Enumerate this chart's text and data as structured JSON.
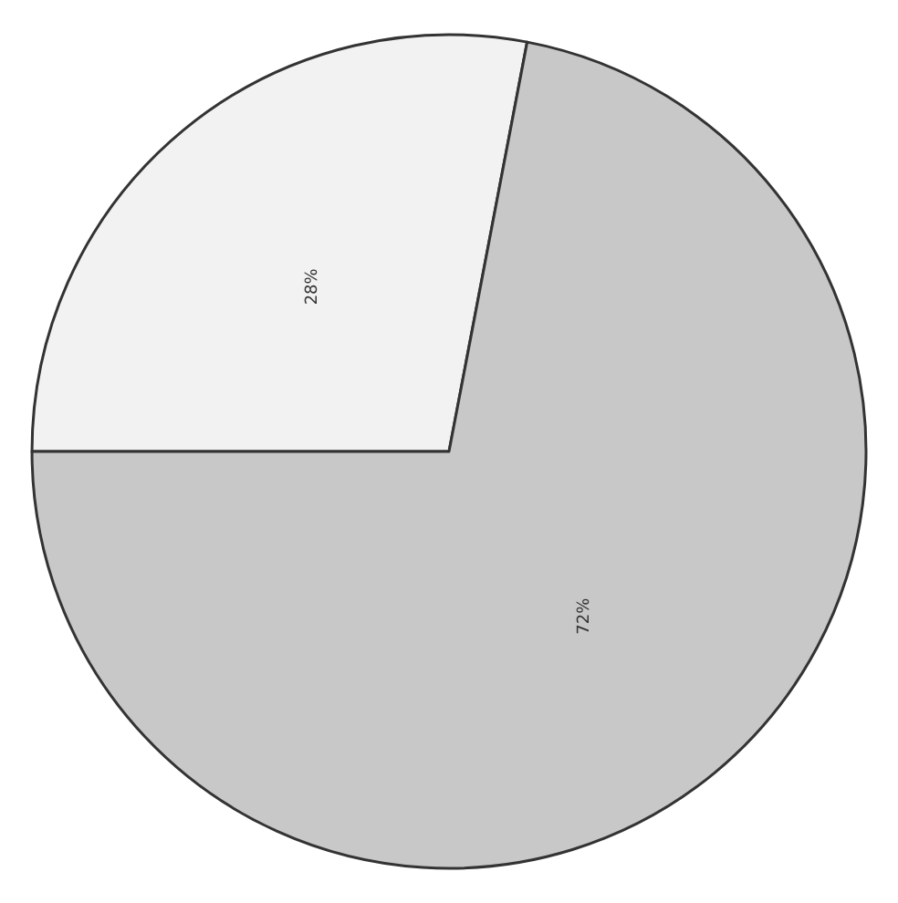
{
  "chart_data": {
    "type": "pie",
    "categories": [
      null,
      null
    ],
    "values": [
      28,
      72
    ],
    "colors": [
      "#f2f2f2",
      "#c8c8c8"
    ],
    "value_labels": [
      "28%",
      "72%"
    ]
  }
}
